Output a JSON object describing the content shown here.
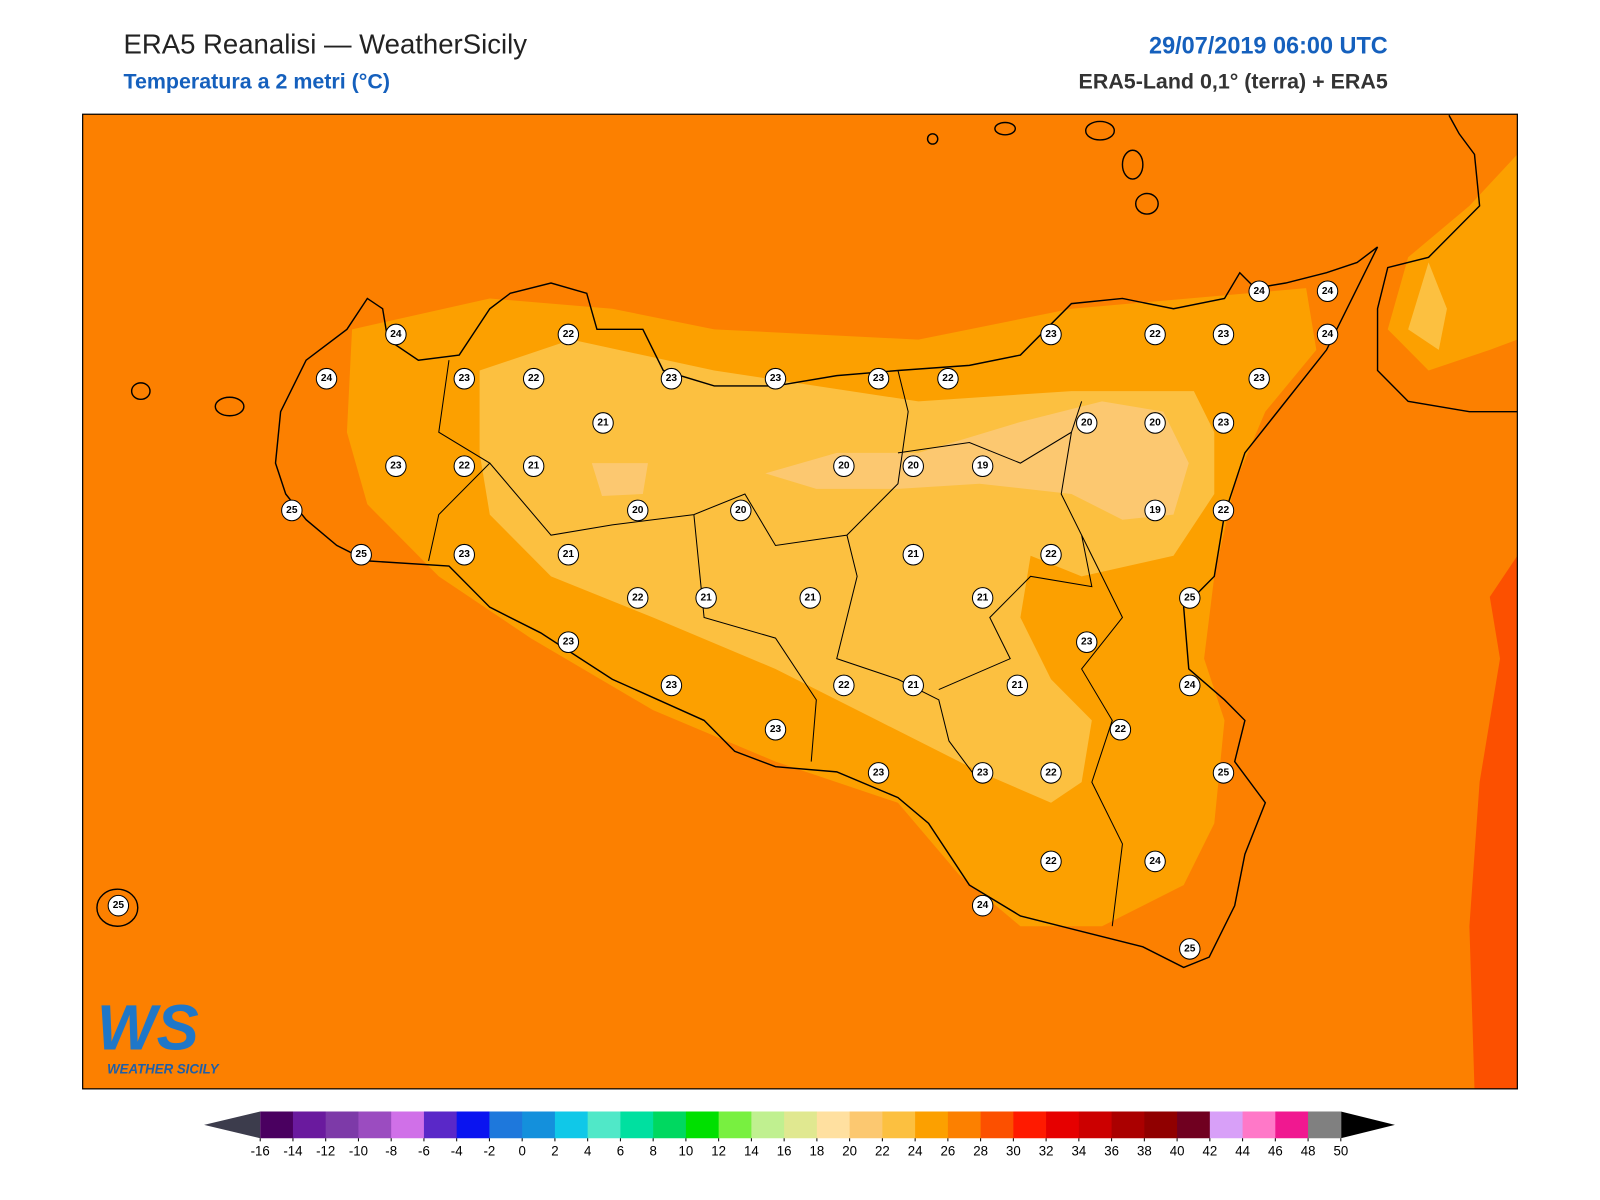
{
  "header": {
    "title": "ERA5 Reanalisi — WeatherSicily",
    "subtitle": "Temperatura a 2 metri (°C)",
    "datetime": "29/07/2019 06:00 UTC",
    "source": "ERA5-Land 0,1° (terra) + ERA5"
  },
  "labels": [
    24,
    22,
    24,
    23,
    22,
    23,
    23,
    23,
    22,
    23,
    22,
    23,
    24,
    24,
    24,
    23,
    21,
    20,
    20,
    23,
    23,
    22,
    21,
    20,
    20,
    19,
    25,
    20,
    20,
    19,
    22,
    25,
    23,
    21,
    21,
    22,
    22,
    21,
    21,
    21,
    25,
    23,
    23,
    23,
    22,
    21,
    21,
    24,
    23,
    22,
    23,
    23,
    22,
    25,
    22,
    24,
    24,
    25,
    25
  ],
  "colorbar": {
    "ticks": [
      -16,
      -14,
      -12,
      -10,
      -8,
      -6,
      -4,
      -2,
      0,
      2,
      4,
      6,
      8,
      10,
      12,
      14,
      16,
      18,
      20,
      22,
      24,
      26,
      28,
      30,
      32,
      34,
      36,
      38,
      40,
      42,
      44,
      46,
      48,
      50
    ],
    "colors": [
      "#4a0060",
      "#6a1a9e",
      "#7d3aa8",
      "#9b4cc0",
      "#d070e8",
      "#5a28c8",
      "#0a14f0",
      "#1e78dc",
      "#1490dc",
      "#10c8e8",
      "#50e8c8",
      "#00e0a0",
      "#00d860",
      "#00e000",
      "#78f040",
      "#c0f090",
      "#e0e890",
      "#ffe0a0",
      "#fcc870",
      "#fcc040",
      "#fca000",
      "#fc8000",
      "#fc5000",
      "#ff1a00",
      "#e60000",
      "#cc0000",
      "#aa0000",
      "#900000",
      "#700020",
      "#d8a0f8",
      "#ff78c8",
      "#f01890",
      "#808080",
      "#404040"
    ],
    "under_color": "#3c3c4c",
    "over_color": "#000000"
  },
  "logo": {
    "mark": "WS",
    "text": "WEATHER SICILY"
  }
}
